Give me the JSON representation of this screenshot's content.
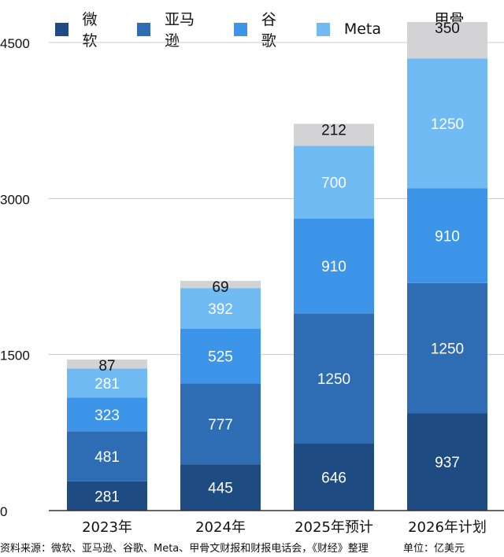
{
  "chart_data": {
    "type": "bar",
    "stacked": true,
    "categories": [
      "2023年",
      "2024年",
      "2025年预计",
      "2026年计划"
    ],
    "series": [
      {
        "name": "微软",
        "color": "#1d4b82",
        "values": [
          281,
          445,
          646,
          937
        ]
      },
      {
        "name": "亚马逊",
        "color": "#2e6db4",
        "values": [
          481,
          777,
          1250,
          1250
        ]
      },
      {
        "name": "谷歌",
        "color": "#3d95ea",
        "values": [
          323,
          525,
          910,
          910
        ]
      },
      {
        "name": "Meta",
        "color": "#71bbf5",
        "values": [
          281,
          392,
          700,
          1250
        ]
      },
      {
        "name": "甲骨文",
        "color": "#d3d3d5",
        "values": [
          87,
          69,
          212,
          350
        ]
      }
    ],
    "yticks": [
      0,
      1500,
      3000,
      4500
    ],
    "ylim": [
      0,
      4500
    ],
    "grid": true,
    "legend": "top"
  },
  "footer": {
    "source": "资料来源：微软、亚马逊、谷歌、Meta、甲骨文财报和财报电话会，《财经》整理",
    "unit": "单位：亿美元"
  }
}
